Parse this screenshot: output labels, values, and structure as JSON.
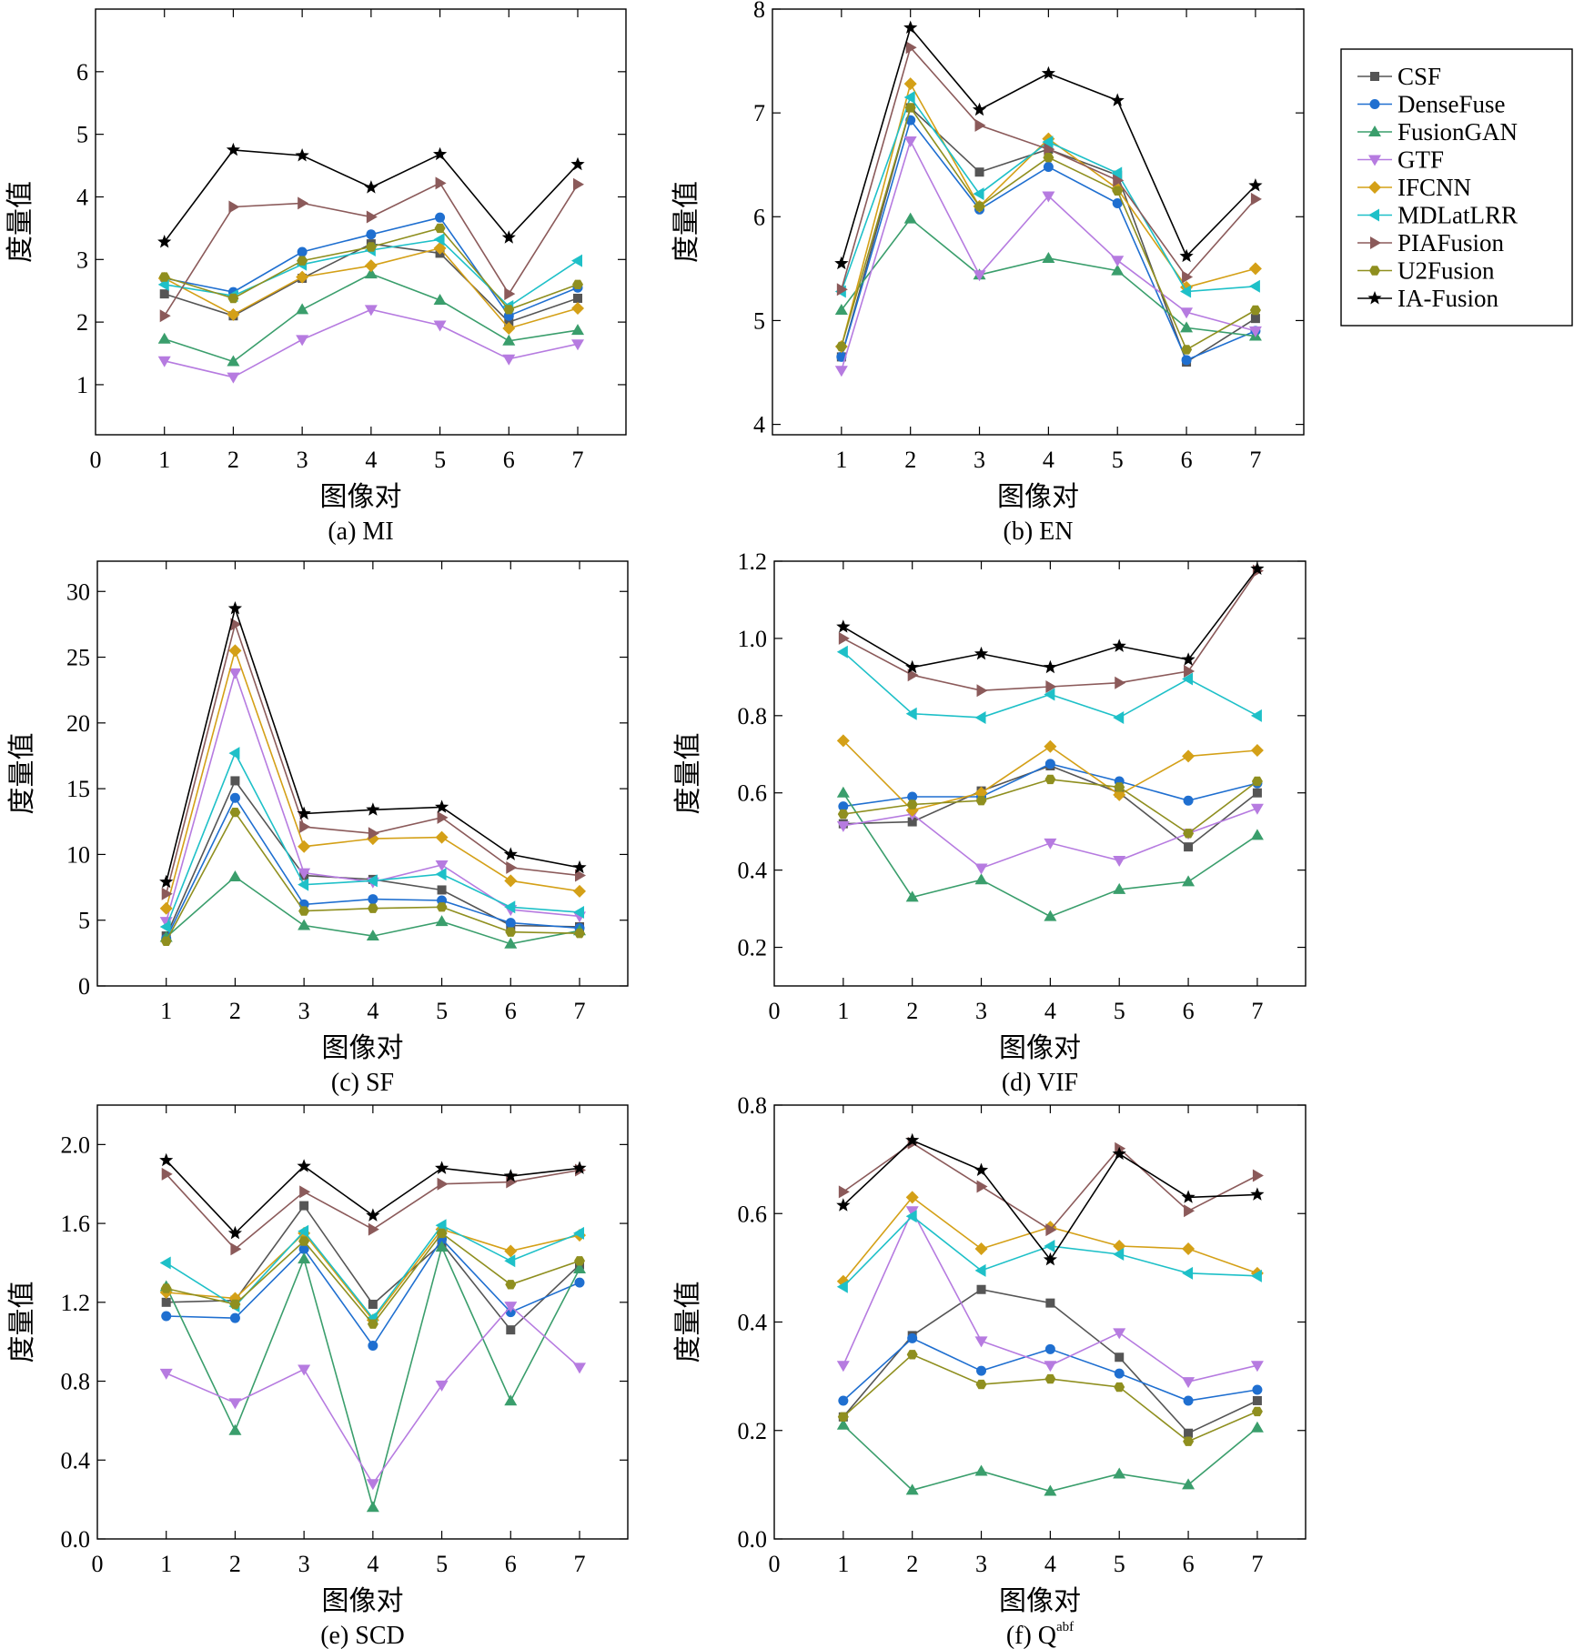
{
  "legend": {
    "placement": "right",
    "entries": [
      "CSF",
      "DenseFuse",
      "FusionGAN",
      "GTF",
      "IFCNN",
      "MDLatLRR",
      "PIAFusion",
      "U2Fusion",
      "IA-Fusion"
    ]
  },
  "series_style": [
    {
      "name": "CSF",
      "color": "#555555",
      "marker": "square"
    },
    {
      "name": "DenseFuse",
      "color": "#1f6fd0",
      "marker": "circle"
    },
    {
      "name": "FusionGAN",
      "color": "#3a9e6c",
      "marker": "triangle-up"
    },
    {
      "name": "GTF",
      "color": "#b67be0",
      "marker": "triangle-down"
    },
    {
      "name": "IFCNN",
      "color": "#d4a017",
      "marker": "diamond"
    },
    {
      "name": "MDLatLRR",
      "color": "#1ec0c8",
      "marker": "triangle-left"
    },
    {
      "name": "PIAFusion",
      "color": "#8b5a5a",
      "marker": "triangle-right"
    },
    {
      "name": "U2Fusion",
      "color": "#8f8f1f",
      "marker": "hexagon"
    },
    {
      "name": "IA-Fusion",
      "color": "#000000",
      "marker": "star"
    }
  ],
  "chart_data": [
    {
      "type": "line",
      "caption": "(a) MI",
      "xlabel": "图像对",
      "ylabel": "度量值",
      "x": [
        1,
        2,
        3,
        4,
        5,
        6,
        7
      ],
      "xlim": [
        0,
        7.7
      ],
      "xticks": [
        "0",
        "1",
        "2",
        "3",
        "4",
        "5",
        "6",
        "7"
      ],
      "ylim": [
        0.2,
        7.0
      ],
      "yticks": [
        "1",
        "2",
        "3",
        "4",
        "5",
        "6"
      ],
      "series": [
        {
          "name": "CSF",
          "values": [
            2.45,
            2.1,
            2.7,
            3.25,
            3.1,
            2.0,
            2.38
          ]
        },
        {
          "name": "DenseFuse",
          "values": [
            2.7,
            2.48,
            3.12,
            3.4,
            3.67,
            2.1,
            2.55
          ]
        },
        {
          "name": "FusionGAN",
          "values": [
            1.73,
            1.37,
            2.2,
            2.77,
            2.35,
            1.7,
            1.87
          ]
        },
        {
          "name": "GTF",
          "values": [
            1.38,
            1.12,
            1.72,
            2.2,
            1.95,
            1.41,
            1.65
          ]
        },
        {
          "name": "IFCNN",
          "values": [
            2.7,
            2.12,
            2.72,
            2.9,
            3.18,
            1.9,
            2.22
          ]
        },
        {
          "name": "MDLatLRR",
          "values": [
            2.6,
            2.42,
            2.92,
            3.15,
            3.32,
            2.25,
            2.98
          ]
        },
        {
          "name": "PIAFusion",
          "values": [
            2.1,
            3.84,
            3.9,
            3.68,
            4.22,
            2.45,
            4.2
          ]
        },
        {
          "name": "U2Fusion",
          "values": [
            2.72,
            2.38,
            2.98,
            3.2,
            3.5,
            2.2,
            2.6
          ]
        },
        {
          "name": "IA-Fusion",
          "values": [
            3.28,
            4.75,
            4.66,
            4.15,
            4.68,
            3.35,
            4.52
          ]
        }
      ]
    },
    {
      "type": "line",
      "caption": "(b) EN",
      "xlabel": "图像对",
      "ylabel": "度量值",
      "x": [
        1,
        2,
        3,
        4,
        5,
        6,
        7
      ],
      "xlim": [
        0,
        7.7
      ],
      "xticks": [
        "1",
        "2",
        "3",
        "4",
        "5",
        "6",
        "7"
      ],
      "ylim": [
        3.9,
        8.0
      ],
      "yticks": [
        "4",
        "5",
        "6",
        "7",
        "8"
      ],
      "series": [
        {
          "name": "CSF",
          "values": [
            4.65,
            7.05,
            6.43,
            6.65,
            6.4,
            4.6,
            5.02
          ]
        },
        {
          "name": "DenseFuse",
          "values": [
            4.65,
            6.93,
            6.07,
            6.48,
            6.13,
            4.62,
            4.9
          ]
        },
        {
          "name": "FusionGAN",
          "values": [
            5.1,
            5.98,
            5.44,
            5.6,
            5.48,
            4.93,
            4.85
          ]
        },
        {
          "name": "GTF",
          "values": [
            4.52,
            6.73,
            5.44,
            6.2,
            5.58,
            5.08,
            4.9
          ]
        },
        {
          "name": "IFCNN",
          "values": [
            4.75,
            7.28,
            6.1,
            6.75,
            6.27,
            5.32,
            5.5
          ]
        },
        {
          "name": "MDLatLRR",
          "values": [
            5.28,
            7.15,
            6.22,
            6.72,
            6.42,
            5.28,
            5.33
          ]
        },
        {
          "name": "PIAFusion",
          "values": [
            5.3,
            7.63,
            6.88,
            6.65,
            6.35,
            5.42,
            6.17
          ]
        },
        {
          "name": "U2Fusion",
          "values": [
            4.75,
            7.05,
            6.1,
            6.57,
            6.25,
            4.72,
            5.1
          ]
        },
        {
          "name": "IA-Fusion",
          "values": [
            5.55,
            7.82,
            7.03,
            7.38,
            7.12,
            5.62,
            6.3
          ]
        }
      ]
    },
    {
      "type": "line",
      "caption": "(c) SF",
      "xlabel": "图像对",
      "ylabel": "度量值",
      "x": [
        1,
        2,
        3,
        4,
        5,
        6,
        7
      ],
      "xlim": [
        0,
        7.7
      ],
      "xticks": [
        "1",
        "2",
        "3",
        "4",
        "5",
        "6",
        "7"
      ],
      "ylim": [
        0,
        32.3
      ],
      "yticks": [
        "0",
        "5",
        "10",
        "15",
        "20",
        "25",
        "30"
      ],
      "series": [
        {
          "name": "CSF",
          "values": [
            3.8,
            15.6,
            8.4,
            8.1,
            7.3,
            4.6,
            4.5
          ]
        },
        {
          "name": "DenseFuse",
          "values": [
            3.6,
            14.3,
            6.2,
            6.6,
            6.5,
            4.8,
            4.4
          ]
        },
        {
          "name": "FusionGAN",
          "values": [
            3.7,
            8.3,
            4.6,
            3.8,
            4.9,
            3.2,
            4.2
          ]
        },
        {
          "name": "GTF",
          "values": [
            4.9,
            23.8,
            8.6,
            7.9,
            9.2,
            5.8,
            5.3
          ]
        },
        {
          "name": "IFCNN",
          "values": [
            5.9,
            25.5,
            10.6,
            11.2,
            11.3,
            8.0,
            7.2
          ]
        },
        {
          "name": "MDLatLRR",
          "values": [
            4.5,
            17.7,
            7.7,
            8.0,
            8.5,
            6.0,
            5.6
          ]
        },
        {
          "name": "PIAFusion",
          "values": [
            7.0,
            27.5,
            12.1,
            11.6,
            12.8,
            9.0,
            8.4
          ]
        },
        {
          "name": "U2Fusion",
          "values": [
            3.4,
            13.2,
            5.7,
            5.9,
            6.0,
            4.1,
            4.0
          ]
        },
        {
          "name": "IA-Fusion",
          "values": [
            7.9,
            28.7,
            13.1,
            13.4,
            13.6,
            10.0,
            9.0
          ]
        }
      ]
    },
    {
      "type": "line",
      "caption": "(d) VIF",
      "xlabel": "图像对",
      "ylabel": "度量值",
      "x": [
        1,
        2,
        3,
        4,
        5,
        6,
        7
      ],
      "xlim": [
        0,
        7.7
      ],
      "xticks": [
        "0",
        "1",
        "2",
        "3",
        "4",
        "5",
        "6",
        "7"
      ],
      "ylim": [
        0.1,
        1.2
      ],
      "yticks": [
        "0.2",
        "0.4",
        "0.6",
        "0.8",
        "1.0",
        "1.2"
      ],
      "series": [
        {
          "name": "CSF",
          "values": [
            0.52,
            0.525,
            0.605,
            0.67,
            0.6,
            0.46,
            0.6
          ]
        },
        {
          "name": "DenseFuse",
          "values": [
            0.565,
            0.59,
            0.59,
            0.675,
            0.63,
            0.58,
            0.625
          ]
        },
        {
          "name": "FusionGAN",
          "values": [
            0.6,
            0.33,
            0.375,
            0.28,
            0.35,
            0.37,
            0.49
          ]
        },
        {
          "name": "GTF",
          "values": [
            0.515,
            0.545,
            0.405,
            0.47,
            0.425,
            0.495,
            0.56
          ]
        },
        {
          "name": "IFCNN",
          "values": [
            0.735,
            0.555,
            0.6,
            0.72,
            0.595,
            0.695,
            0.71
          ]
        },
        {
          "name": "MDLatLRR",
          "values": [
            0.965,
            0.805,
            0.795,
            0.855,
            0.795,
            0.895,
            0.8
          ]
        },
        {
          "name": "PIAFusion",
          "values": [
            1.0,
            0.905,
            0.865,
            0.875,
            0.885,
            0.915,
            1.175
          ]
        },
        {
          "name": "U2Fusion",
          "values": [
            0.545,
            0.57,
            0.58,
            0.635,
            0.615,
            0.495,
            0.63
          ]
        },
        {
          "name": "IA-Fusion",
          "values": [
            1.03,
            0.925,
            0.96,
            0.925,
            0.98,
            0.945,
            1.18
          ]
        }
      ]
    },
    {
      "type": "line",
      "caption": "(e) SCD",
      "xlabel": "图像对",
      "ylabel": "度量值",
      "x": [
        1,
        2,
        3,
        4,
        5,
        6,
        7
      ],
      "xlim": [
        0,
        7.7
      ],
      "xticks": [
        "0",
        "1",
        "2",
        "3",
        "4",
        "5",
        "6",
        "7"
      ],
      "ylim": [
        0,
        2.2
      ],
      "yticks": [
        "0.0",
        "0.4",
        "0.8",
        "1.2",
        "1.6",
        "2.0"
      ],
      "series": [
        {
          "name": "CSF",
          "values": [
            1.2,
            1.21,
            1.69,
            1.19,
            1.5,
            1.06,
            1.39
          ]
        },
        {
          "name": "DenseFuse",
          "values": [
            1.13,
            1.12,
            1.47,
            0.98,
            1.52,
            1.15,
            1.3
          ]
        },
        {
          "name": "FusionGAN",
          "values": [
            1.28,
            0.55,
            1.42,
            0.16,
            1.48,
            0.7,
            1.37
          ]
        },
        {
          "name": "GTF",
          "values": [
            0.84,
            0.69,
            0.86,
            0.28,
            0.78,
            1.18,
            0.87
          ]
        },
        {
          "name": "IFCNN",
          "values": [
            1.25,
            1.22,
            1.55,
            1.11,
            1.57,
            1.46,
            1.54
          ]
        },
        {
          "name": "MDLatLRR",
          "values": [
            1.4,
            1.18,
            1.56,
            1.12,
            1.59,
            1.41,
            1.55
          ]
        },
        {
          "name": "PIAFusion",
          "values": [
            1.85,
            1.47,
            1.76,
            1.57,
            1.8,
            1.81,
            1.87
          ]
        },
        {
          "name": "U2Fusion",
          "values": [
            1.27,
            1.19,
            1.51,
            1.09,
            1.55,
            1.29,
            1.41
          ]
        },
        {
          "name": "IA-Fusion",
          "values": [
            1.92,
            1.55,
            1.89,
            1.64,
            1.88,
            1.84,
            1.88
          ]
        }
      ]
    },
    {
      "type": "line",
      "caption": "(f) Q",
      "caption_superscript": "abf",
      "xlabel": "图像对",
      "ylabel": "度量值",
      "x": [
        1,
        2,
        3,
        4,
        5,
        6,
        7
      ],
      "xlim": [
        0,
        7.7
      ],
      "xticks": [
        "0",
        "1",
        "2",
        "3",
        "4",
        "5",
        "6",
        "7"
      ],
      "ylim": [
        0,
        0.8
      ],
      "yticks": [
        "0.0",
        "0.2",
        "0.4",
        "0.6",
        "0.8"
      ],
      "series": [
        {
          "name": "CSF",
          "values": [
            0.225,
            0.375,
            0.46,
            0.435,
            0.335,
            0.195,
            0.255
          ]
        },
        {
          "name": "DenseFuse",
          "values": [
            0.255,
            0.37,
            0.31,
            0.35,
            0.305,
            0.255,
            0.275
          ]
        },
        {
          "name": "FusionGAN",
          "values": [
            0.21,
            0.09,
            0.125,
            0.088,
            0.12,
            0.1,
            0.205
          ]
        },
        {
          "name": "GTF",
          "values": [
            0.32,
            0.605,
            0.365,
            0.32,
            0.38,
            0.29,
            0.32
          ]
        },
        {
          "name": "IFCNN",
          "values": [
            0.475,
            0.63,
            0.535,
            0.575,
            0.54,
            0.535,
            0.49
          ]
        },
        {
          "name": "MDLatLRR",
          "values": [
            0.465,
            0.595,
            0.495,
            0.54,
            0.525,
            0.49,
            0.485
          ]
        },
        {
          "name": "PIAFusion",
          "values": [
            0.64,
            0.73,
            0.65,
            0.57,
            0.72,
            0.605,
            0.67
          ]
        },
        {
          "name": "U2Fusion",
          "values": [
            0.225,
            0.34,
            0.285,
            0.295,
            0.28,
            0.18,
            0.235
          ]
        },
        {
          "name": "IA-Fusion",
          "values": [
            0.615,
            0.735,
            0.68,
            0.515,
            0.71,
            0.63,
            0.635
          ]
        }
      ]
    }
  ]
}
